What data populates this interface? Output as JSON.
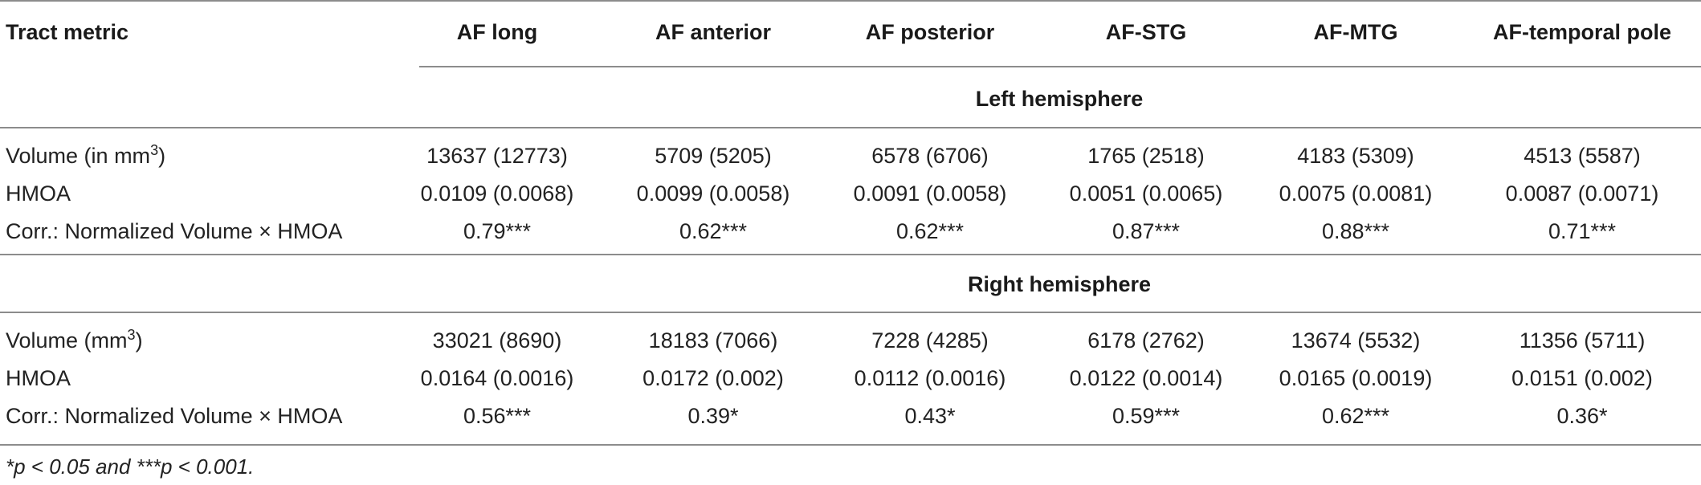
{
  "table": {
    "header": {
      "first": "Tract metric",
      "columns": [
        "AF long",
        "AF anterior",
        "AF posterior",
        "AF-STG",
        "AF-MTG",
        "AF-temporal pole"
      ]
    },
    "sections": [
      {
        "title": "Left hemisphere",
        "rows": [
          {
            "label": "Volume (in mm",
            "label_sup": "3",
            "label_after": ")",
            "values": [
              "13637 (12773)",
              "5709 (5205)",
              "6578 (6706)",
              "1765 (2518)",
              "4183 (5309)",
              "4513 (5587)"
            ]
          },
          {
            "label": "HMOA",
            "label_sup": "",
            "label_after": "",
            "values": [
              "0.0109 (0.0068)",
              "0.0099 (0.0058)",
              "0.0091 (0.0058)",
              "0.0051 (0.0065)",
              "0.0075 (0.0081)",
              "0.0087 (0.0071)"
            ]
          },
          {
            "label": "Corr.: Normalized Volume × HMOA",
            "label_sup": "",
            "label_after": "",
            "values": [
              "0.79***",
              "0.62***",
              "0.62***",
              "0.87***",
              "0.88***",
              "0.71***"
            ]
          }
        ]
      },
      {
        "title": "Right hemisphere",
        "rows": [
          {
            "label": "Volume (mm",
            "label_sup": "3",
            "label_after": ")",
            "values": [
              "33021 (8690)",
              "18183 (7066)",
              "7228 (4285)",
              "6178 (2762)",
              "13674 (5532)",
              "11356 (5711)"
            ]
          },
          {
            "label": "HMOA",
            "label_sup": "",
            "label_after": "",
            "values": [
              "0.0164 (0.0016)",
              "0.0172 (0.002)",
              "0.0112 (0.0016)",
              "0.0122 (0.0014)",
              "0.0165 (0.0019)",
              "0.0151 (0.002)"
            ]
          },
          {
            "label": "Corr.: Normalized Volume × HMOA",
            "label_sup": "",
            "label_after": "",
            "values": [
              "0.56***",
              "0.39*",
              "0.43*",
              "0.59***",
              "0.62***",
              "0.36*"
            ]
          }
        ]
      }
    ],
    "footnote": "*p < 0.05 and ***p < 0.001."
  }
}
